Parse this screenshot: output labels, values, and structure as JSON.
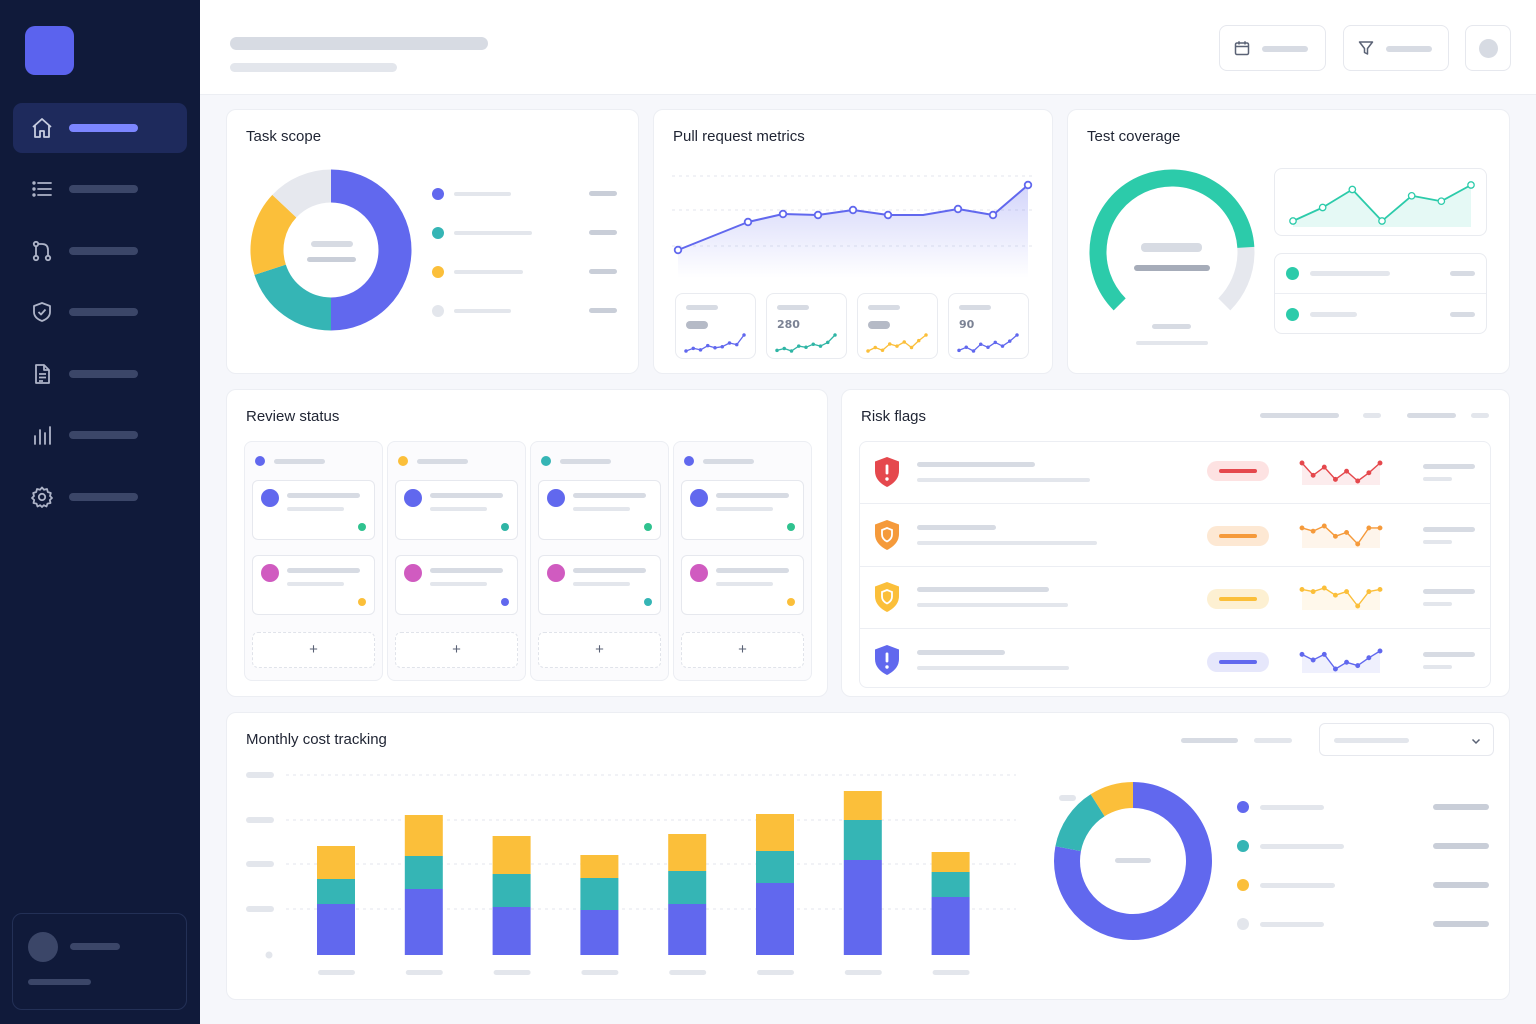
{
  "sidebar": {
    "items": [
      {
        "icon": "home-icon",
        "active": true
      },
      {
        "icon": "list-icon",
        "active": false
      },
      {
        "icon": "git-branch-icon",
        "active": false
      },
      {
        "icon": "shield-check-icon",
        "active": false
      },
      {
        "icon": "document-icon",
        "active": false
      },
      {
        "icon": "bar-chart-icon",
        "active": false
      },
      {
        "icon": "gear-icon",
        "active": false
      }
    ]
  },
  "header": {
    "buttons": [
      {
        "icon": "calendar-icon"
      },
      {
        "icon": "filter-icon"
      },
      {
        "icon": "avatar"
      }
    ]
  },
  "task_scope": {
    "title": "Task scope",
    "chart_data": {
      "type": "pie",
      "slices": [
        {
          "value": 50,
          "color": "#6168ee"
        },
        {
          "value": 20,
          "color": "#35b5b5"
        },
        {
          "value": 17,
          "color": "#fbbf3a"
        },
        {
          "value": 13,
          "color": "#e6e8ee"
        }
      ]
    },
    "legend_colors": [
      "#6168ee",
      "#35b5b5",
      "#fbbf3a",
      "#e3e6ec"
    ]
  },
  "pull_requests": {
    "title": "Pull request metrics",
    "chart_data": {
      "type": "area",
      "values": [
        30,
        44,
        58,
        66,
        65,
        70,
        65,
        65,
        71,
        65,
        95
      ],
      "color": "#6168ee"
    },
    "kpis": [
      {
        "value": "",
        "color": "#6168ee"
      },
      {
        "value": "280",
        "color": "#2fb5a5"
      },
      {
        "value": "",
        "color": "#fbbf3a"
      },
      {
        "value": "90",
        "color": "#6168ee"
      }
    ]
  },
  "test_coverage": {
    "title": "Test coverage",
    "gauge_fraction": 0.82,
    "gauge_color": "#2ccbaa",
    "trend_values": [
      20,
      35,
      55,
      20,
      48,
      42,
      60
    ],
    "legend_colors": [
      "#2ccbaa",
      "#2ccbaa"
    ]
  },
  "review_status": {
    "title": "Review status",
    "columns": [
      {
        "color": "#6168ee",
        "cards": [
          {
            "avatar": "#6168ee",
            "status": "#2fc28f"
          },
          {
            "avatar": "#d05bc0",
            "status": "#fbbf3a"
          }
        ],
        "add_label": "+"
      },
      {
        "color": "#fbbf3a",
        "cards": [
          {
            "avatar": "#6168ee",
            "status": "#2fb5a5"
          },
          {
            "avatar": "#d05bc0",
            "status": "#6168ee"
          }
        ],
        "add_label": "+"
      },
      {
        "color": "#35b5b5",
        "cards": [
          {
            "avatar": "#6168ee",
            "status": "#2fc28f"
          },
          {
            "avatar": "#d05bc0",
            "status": "#35b5b5"
          }
        ],
        "add_label": "+"
      },
      {
        "color": "#6168ee",
        "cards": [
          {
            "avatar": "#6168ee",
            "status": "#2fc28f"
          },
          {
            "avatar": "#d05bc0",
            "status": "#fbbf3a"
          }
        ],
        "add_label": "+"
      }
    ]
  },
  "risk_flags": {
    "title": "Risk flags",
    "rows": [
      {
        "icon": "shield-alert-icon",
        "color": "#e5484d",
        "pill_bg": "#fde2e2",
        "trend": [
          60,
          45,
          55,
          40,
          50,
          38,
          48,
          60
        ]
      },
      {
        "icon": "shield-warning-icon",
        "color": "#f59a3b",
        "pill_bg": "#fde8d3",
        "trend": [
          55,
          50,
          58,
          42,
          48,
          30,
          55,
          55
        ]
      },
      {
        "icon": "shield-warning-icon",
        "color": "#fbbf3a",
        "pill_bg": "#fdf0d2",
        "trend": [
          58,
          55,
          60,
          50,
          55,
          35,
          55,
          58
        ]
      },
      {
        "icon": "shield-alert-icon",
        "color": "#6168ee",
        "pill_bg": "#e6e7fb",
        "trend": [
          55,
          50,
          55,
          42,
          48,
          45,
          52,
          58
        ]
      }
    ]
  },
  "monthly_cost": {
    "title": "Monthly cost tracking",
    "chart_data": {
      "type": "bar",
      "stacked": true,
      "series": [
        {
          "color": "#6168ee",
          "values": [
            51,
            66,
            48,
            45,
            51,
            72,
            95,
            58
          ]
        },
        {
          "color": "#35b5b5",
          "values": [
            25,
            33,
            33,
            32,
            33,
            32,
            40,
            25
          ]
        },
        {
          "color": "#fbbf3a",
          "values": [
            33,
            41,
            38,
            23,
            37,
            37,
            29,
            20
          ]
        }
      ],
      "ylim": [
        0,
        180
      ]
    },
    "donut": [
      {
        "value": 78,
        "color": "#6168ee"
      },
      {
        "value": 13,
        "color": "#35b5b5"
      },
      {
        "value": 9,
        "color": "#fbbf3a"
      }
    ],
    "legend_colors": [
      "#6168ee",
      "#35b5b5",
      "#fbbf3a",
      "#e3e6ec"
    ]
  }
}
